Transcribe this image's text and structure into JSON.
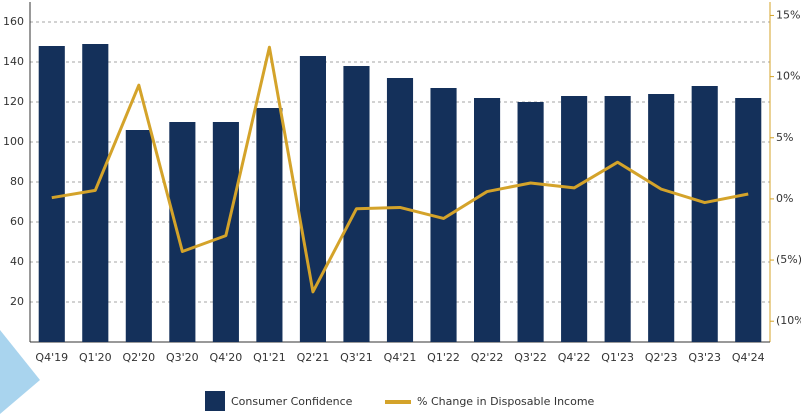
{
  "chart_data": {
    "type": "bar_line",
    "categories": [
      "Q4'19",
      "Q1'20",
      "Q2'20",
      "Q3'20",
      "Q4'20",
      "Q1'21",
      "Q2'21",
      "Q3'21",
      "Q4'21",
      "Q1'22",
      "Q2'22",
      "Q3'22",
      "Q4'22",
      "Q1'23",
      "Q2'23",
      "Q3'23",
      "Q4'24"
    ],
    "series": [
      {
        "name": "Consumer Confidence",
        "type": "bar",
        "color": "#14305a",
        "values": [
          148,
          149,
          106,
          110,
          110,
          117,
          143,
          138,
          132,
          127,
          122,
          120,
          123,
          123,
          124,
          128,
          122
        ]
      },
      {
        "name": "% Change in Disposable Income",
        "type": "line",
        "axis": "y2",
        "color": "#d4a32a",
        "values": [
          0.1,
          0.7,
          9.3,
          -4.3,
          -3.0,
          12.4,
          -7.6,
          -0.8,
          -0.7,
          -1.6,
          0.6,
          1.3,
          0.9,
          3.0,
          0.8,
          -0.3,
          0.4
        ]
      }
    ],
    "ylim": [
      0,
      170
    ],
    "yticks": [
      20,
      40,
      60,
      80,
      100,
      120,
      140,
      160
    ],
    "y2lim": [
      -11.7,
      16.1
    ],
    "y2ticks": [
      {
        "value": 15,
        "label": "15%"
      },
      {
        "value": 10,
        "label": "10%"
      },
      {
        "value": 5,
        "label": "5%"
      },
      {
        "value": 0,
        "label": "0%"
      },
      {
        "value": -5,
        "label": "(5%)"
      },
      {
        "value": -10,
        "label": "(10%)"
      }
    ],
    "grid": true
  }
}
